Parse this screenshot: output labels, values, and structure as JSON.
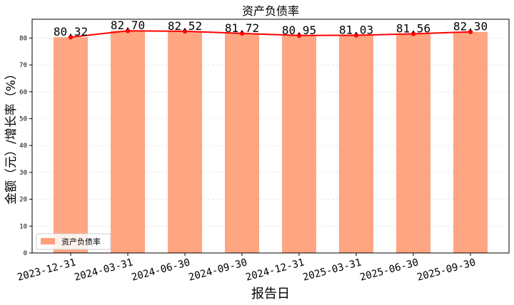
{
  "chart_data": {
    "type": "bar",
    "title": "资产负债率",
    "xlabel": "报告日",
    "ylabel": "金额（元）/增长率（%）",
    "categories": [
      "2023-12-31",
      "2024-03-31",
      "2024-06-30",
      "2024-09-30",
      "2024-12-31",
      "2025-03-31",
      "2025-06-30",
      "2025-09-30"
    ],
    "series": [
      {
        "name": "资产负债率",
        "type": "bar",
        "values": [
          80.32,
          82.7,
          82.52,
          81.72,
          80.95,
          81.03,
          81.56,
          82.3
        ],
        "color": "#FFA07A"
      },
      {
        "type": "line",
        "values": [
          80.32,
          82.7,
          82.52,
          81.72,
          80.95,
          81.03,
          81.56,
          82.3
        ],
        "color": "#FF0000"
      }
    ],
    "data_labels": [
      "80.32",
      "82.70",
      "82.52",
      "81.72",
      "80.95",
      "81.03",
      "81.56",
      "82.30"
    ],
    "ylim": [
      0,
      87
    ],
    "yticks": [
      0,
      10,
      20,
      30,
      40,
      50,
      60,
      70,
      80
    ],
    "grid": true,
    "legend": "lower-left"
  }
}
